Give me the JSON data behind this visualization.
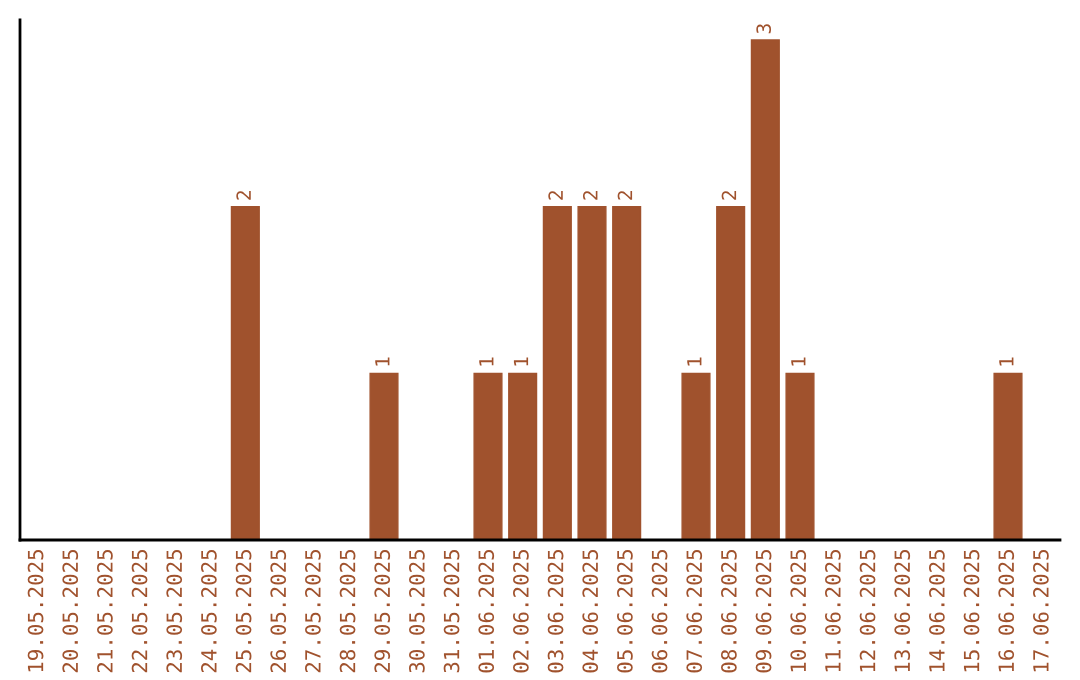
{
  "chart_data": {
    "type": "bar",
    "categories": [
      "19.05.2025",
      "20.05.2025",
      "21.05.2025",
      "22.05.2025",
      "23.05.2025",
      "24.05.2025",
      "25.05.2025",
      "26.05.2025",
      "27.05.2025",
      "28.05.2025",
      "29.05.2025",
      "30.05.2025",
      "31.05.2025",
      "01.06.2025",
      "02.06.2025",
      "03.06.2025",
      "04.06.2025",
      "05.06.2025",
      "06.06.2025",
      "07.06.2025",
      "08.06.2025",
      "09.06.2025",
      "10.06.2025",
      "11.06.2025",
      "12.06.2025",
      "13.06.2025",
      "14.06.2025",
      "15.06.2025",
      "16.06.2025",
      "17.06.2025"
    ],
    "values": [
      0,
      0,
      0,
      0,
      0,
      0,
      2,
      0,
      0,
      0,
      1,
      0,
      0,
      1,
      1,
      2,
      2,
      2,
      0,
      1,
      2,
      3,
      1,
      0,
      0,
      0,
      0,
      0,
      1,
      0
    ],
    "value_labels": [
      null,
      null,
      null,
      null,
      null,
      null,
      "2",
      null,
      null,
      null,
      "1",
      null,
      null,
      "1",
      "1",
      "2",
      "2",
      "2",
      null,
      "1",
      "2",
      "3",
      "1",
      null,
      null,
      null,
      null,
      null,
      "1",
      null
    ],
    "color": "#a0522d",
    "tick_labels": "x",
    "grid": false,
    "legend": false
  }
}
